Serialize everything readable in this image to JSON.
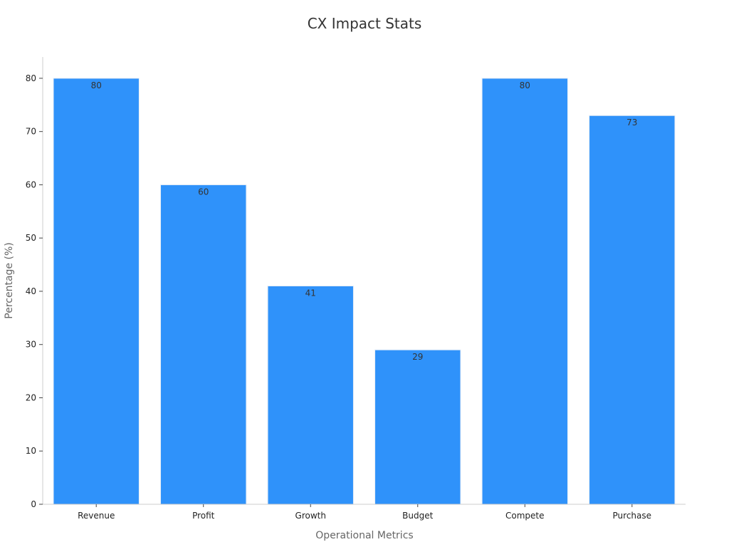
{
  "chart_data": {
    "type": "bar",
    "title": "CX Impact Stats",
    "xlabel": "Operational Metrics",
    "ylabel": "Percentage (%)",
    "categories": [
      "Revenue",
      "Profit",
      "Growth",
      "Budget",
      "Compete",
      "Purchase"
    ],
    "values": [
      80,
      60,
      41,
      29,
      80,
      73
    ],
    "ylim": [
      0,
      84
    ],
    "yticks": [
      0,
      10,
      20,
      30,
      40,
      50,
      60,
      70,
      80
    ],
    "grid": false,
    "legend": "none",
    "bar_color": "#2f92fa",
    "bar_edge_color": "#e8eef6"
  }
}
